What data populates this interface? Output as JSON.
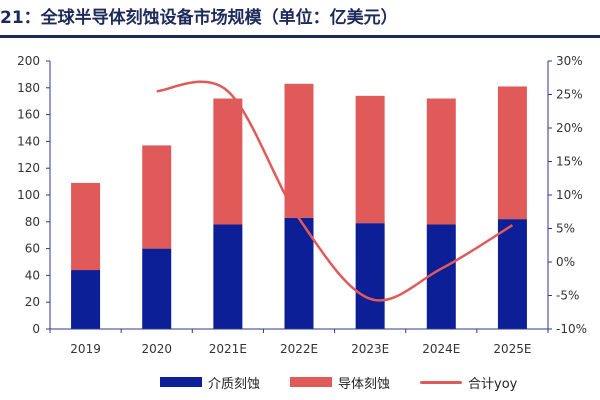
{
  "title": "21：全球半导体刻蚀设备市场规模（单位：亿美元）",
  "colors": {
    "title": "#1f2a5c",
    "dielectric": "#0d1f96",
    "conductor": "#e05a5a",
    "yoy": "#e05a5a",
    "axis": "#2b3a8c"
  },
  "chart_data": {
    "type": "bar",
    "stacked": true,
    "categories": [
      "2019",
      "2020",
      "2021E",
      "2022E",
      "2023E",
      "2024E",
      "2025E"
    ],
    "series": [
      {
        "name": "介质刻蚀",
        "type": "bar",
        "axis": "left",
        "values": [
          44,
          60,
          78,
          83,
          79,
          78,
          82
        ]
      },
      {
        "name": "导体刻蚀",
        "type": "bar",
        "axis": "left",
        "values": [
          65,
          77,
          94,
          100,
          95,
          94,
          99
        ]
      },
      {
        "name": "合计yoy",
        "type": "line",
        "axis": "right",
        "values": [
          null,
          25.5,
          25.5,
          6.5,
          -5.5,
          -1.0,
          5.5
        ]
      }
    ],
    "y_left": {
      "min": 0,
      "max": 200,
      "ticks": [
        "0",
        "20",
        "40",
        "60",
        "80",
        "100",
        "120",
        "140",
        "160",
        "180",
        "200"
      ]
    },
    "y_right": {
      "min": -10,
      "max": 30,
      "ticks": [
        "-10%",
        "-5%",
        "0%",
        "5%",
        "10%",
        "15%",
        "20%",
        "25%",
        "30%"
      ]
    },
    "grid": false,
    "legend_position": "bottom"
  },
  "legend": [
    {
      "label": "介质刻蚀"
    },
    {
      "label": "导体刻蚀"
    },
    {
      "label": "合计yoy"
    }
  ]
}
